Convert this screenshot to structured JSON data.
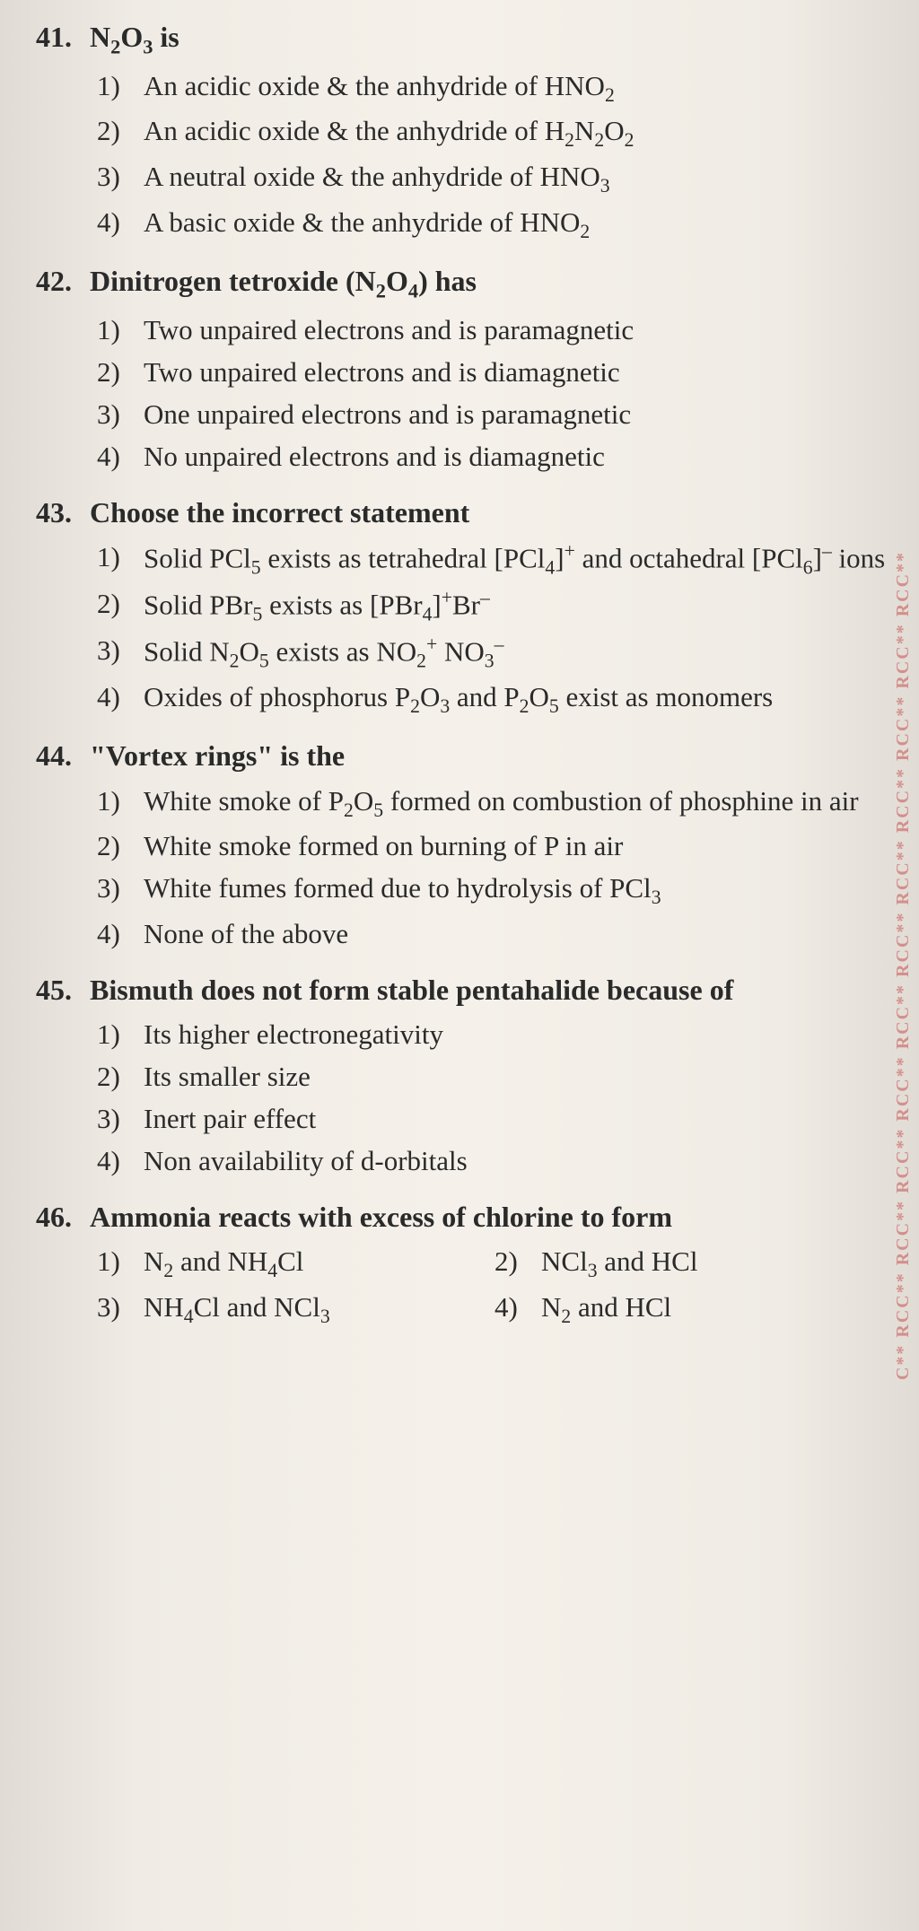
{
  "page": {
    "background_gradient": [
      "#e0dcd5",
      "#f5f1ea"
    ],
    "text_color": "#2a2a2a",
    "watermark_color": "#c94f4f",
    "font_family": "Georgia, Times New Roman, serif",
    "q_header_fontsize": 32,
    "option_fontsize": 31
  },
  "watermark": "C** RCC** RCC** RCC** RCC** RCC** RCC** RCC** RCC** RCC** RCC** RCC**",
  "questions": [
    {
      "num": "41.",
      "text_html": "N<sub>2</sub>O<sub>3</sub> is",
      "options": [
        {
          "n": "1)",
          "text_html": "An acidic oxide & the anhydride of HNO<sub>2</sub>"
        },
        {
          "n": "2)",
          "text_html": "An acidic oxide & the anhydride of H<sub>2</sub>N<sub>2</sub>O<sub>2</sub>"
        },
        {
          "n": "3)",
          "text_html": "A neutral oxide & the anhydride of HNO<sub>3</sub>"
        },
        {
          "n": "4)",
          "text_html": "A basic oxide & the anhydride of HNO<sub>2</sub>"
        }
      ],
      "two_col": false
    },
    {
      "num": "42.",
      "text_html": "Dinitrogen tetroxide (N<sub>2</sub>O<sub>4</sub>) has",
      "options": [
        {
          "n": "1)",
          "text_html": "Two unpaired electrons and is paramagnetic"
        },
        {
          "n": "2)",
          "text_html": "Two unpaired electrons and is diamagnetic"
        },
        {
          "n": "3)",
          "text_html": "One unpaired electrons and is paramagnetic"
        },
        {
          "n": "4)",
          "text_html": "No unpaired electrons and is diamagnetic"
        }
      ],
      "two_col": false
    },
    {
      "num": "43.",
      "text_html": "Choose the incorrect statement",
      "options": [
        {
          "n": "1)",
          "text_html": "Solid PCl<sub>5</sub> exists as tetrahedral [PCl<sub>4</sub>]<sup>+</sup> and octahedral [PCl<sub>6</sub>]<sup>–</sup> ions"
        },
        {
          "n": "2)",
          "text_html": "Solid PBr<sub>5</sub> exists as [PBr<sub>4</sub>]<sup>+</sup>Br<sup>–</sup>"
        },
        {
          "n": "3)",
          "text_html": "Solid N<sub>2</sub>O<sub>5</sub> exists as NO<sub>2</sub><sup>+</sup> NO<sub>3</sub><sup>–</sup>"
        },
        {
          "n": "4)",
          "text_html": "Oxides of phosphorus P<sub>2</sub>O<sub>3</sub> and P<sub>2</sub>O<sub>5</sub> exist as monomers"
        }
      ],
      "two_col": false
    },
    {
      "num": "44.",
      "text_html": "\"Vortex rings\" is the",
      "options": [
        {
          "n": "1)",
          "text_html": "White smoke of P<sub>2</sub>O<sub>5</sub> formed on combustion of phosphine in air"
        },
        {
          "n": "2)",
          "text_html": "White smoke formed on burning of P in air"
        },
        {
          "n": "3)",
          "text_html": "White fumes formed due to hydrolysis of PCl<sub>3</sub>"
        },
        {
          "n": "4)",
          "text_html": "None of the above"
        }
      ],
      "two_col": false
    },
    {
      "num": "45.",
      "text_html": "Bismuth does not form stable pentahalide because of",
      "options": [
        {
          "n": "1)",
          "text_html": "Its higher electronegativity"
        },
        {
          "n": "2)",
          "text_html": "Its smaller size"
        },
        {
          "n": "3)",
          "text_html": "Inert pair effect"
        },
        {
          "n": "4)",
          "text_html": "Non availability of d-orbitals"
        }
      ],
      "two_col": false
    },
    {
      "num": "46.",
      "text_html": "Ammonia reacts with excess of chlorine to form",
      "options": [
        {
          "n": "1)",
          "text_html": "N<sub>2</sub> and NH<sub>4</sub>Cl"
        },
        {
          "n": "2)",
          "text_html": "NCl<sub>3</sub> and HCl"
        },
        {
          "n": "3)",
          "text_html": "NH<sub>4</sub>Cl and NCl<sub>3</sub>"
        },
        {
          "n": "4)",
          "text_html": "N<sub>2</sub> and HCl"
        }
      ],
      "two_col": true
    }
  ]
}
